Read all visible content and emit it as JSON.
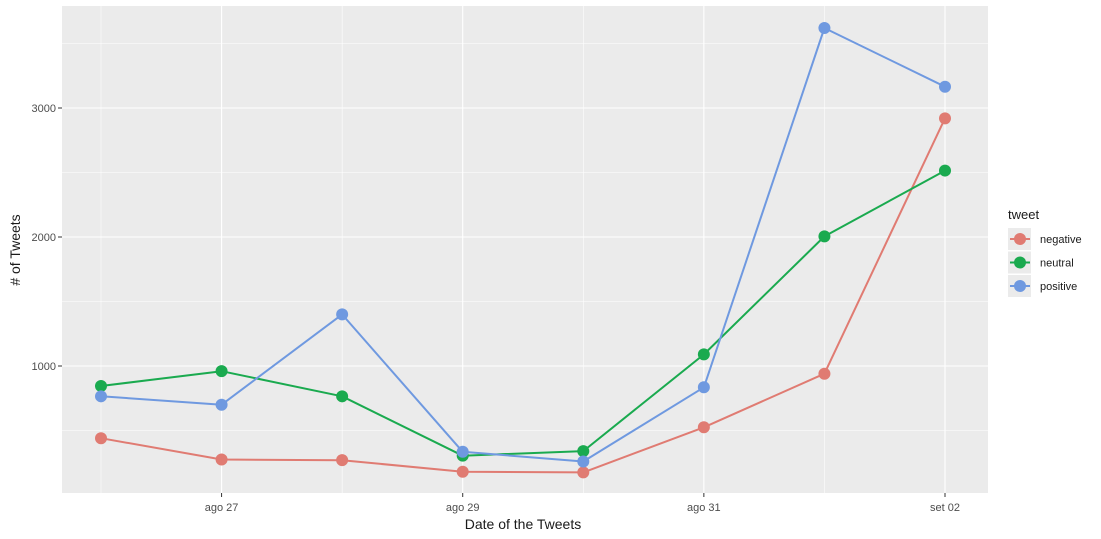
{
  "chart_data": {
    "type": "line",
    "xlabel": "Date of the Tweets",
    "ylabel": "# of Tweets",
    "x": [
      "2019-08-26",
      "2019-08-27",
      "2019-08-28",
      "2019-08-29",
      "2019-08-30",
      "2019-08-31",
      "2019-09-01",
      "2019-09-02"
    ],
    "x_ticks": [
      {
        "date": "2019-08-27",
        "label": "ago 27"
      },
      {
        "date": "2019-08-29",
        "label": "ago 29"
      },
      {
        "date": "2019-08-31",
        "label": "ago 31"
      },
      {
        "date": "2019-09-02",
        "label": "set 02"
      }
    ],
    "y_ticks": [
      1000,
      2000,
      3000
    ],
    "ylim": [
      0,
      3750
    ],
    "grid": true,
    "legend": {
      "title": "tweet",
      "position": "right"
    },
    "series": [
      {
        "name": "negative",
        "color": "#e07b72",
        "values": [
          440,
          275,
          270,
          180,
          175,
          525,
          940,
          2920
        ]
      },
      {
        "name": "neutral",
        "color": "#1aaa4f",
        "values": [
          845,
          960,
          765,
          305,
          340,
          1090,
          2005,
          2515
        ]
      },
      {
        "name": "positive",
        "color": "#6f99e0",
        "values": [
          765,
          700,
          1400,
          335,
          260,
          835,
          3620,
          3165
        ]
      }
    ]
  }
}
